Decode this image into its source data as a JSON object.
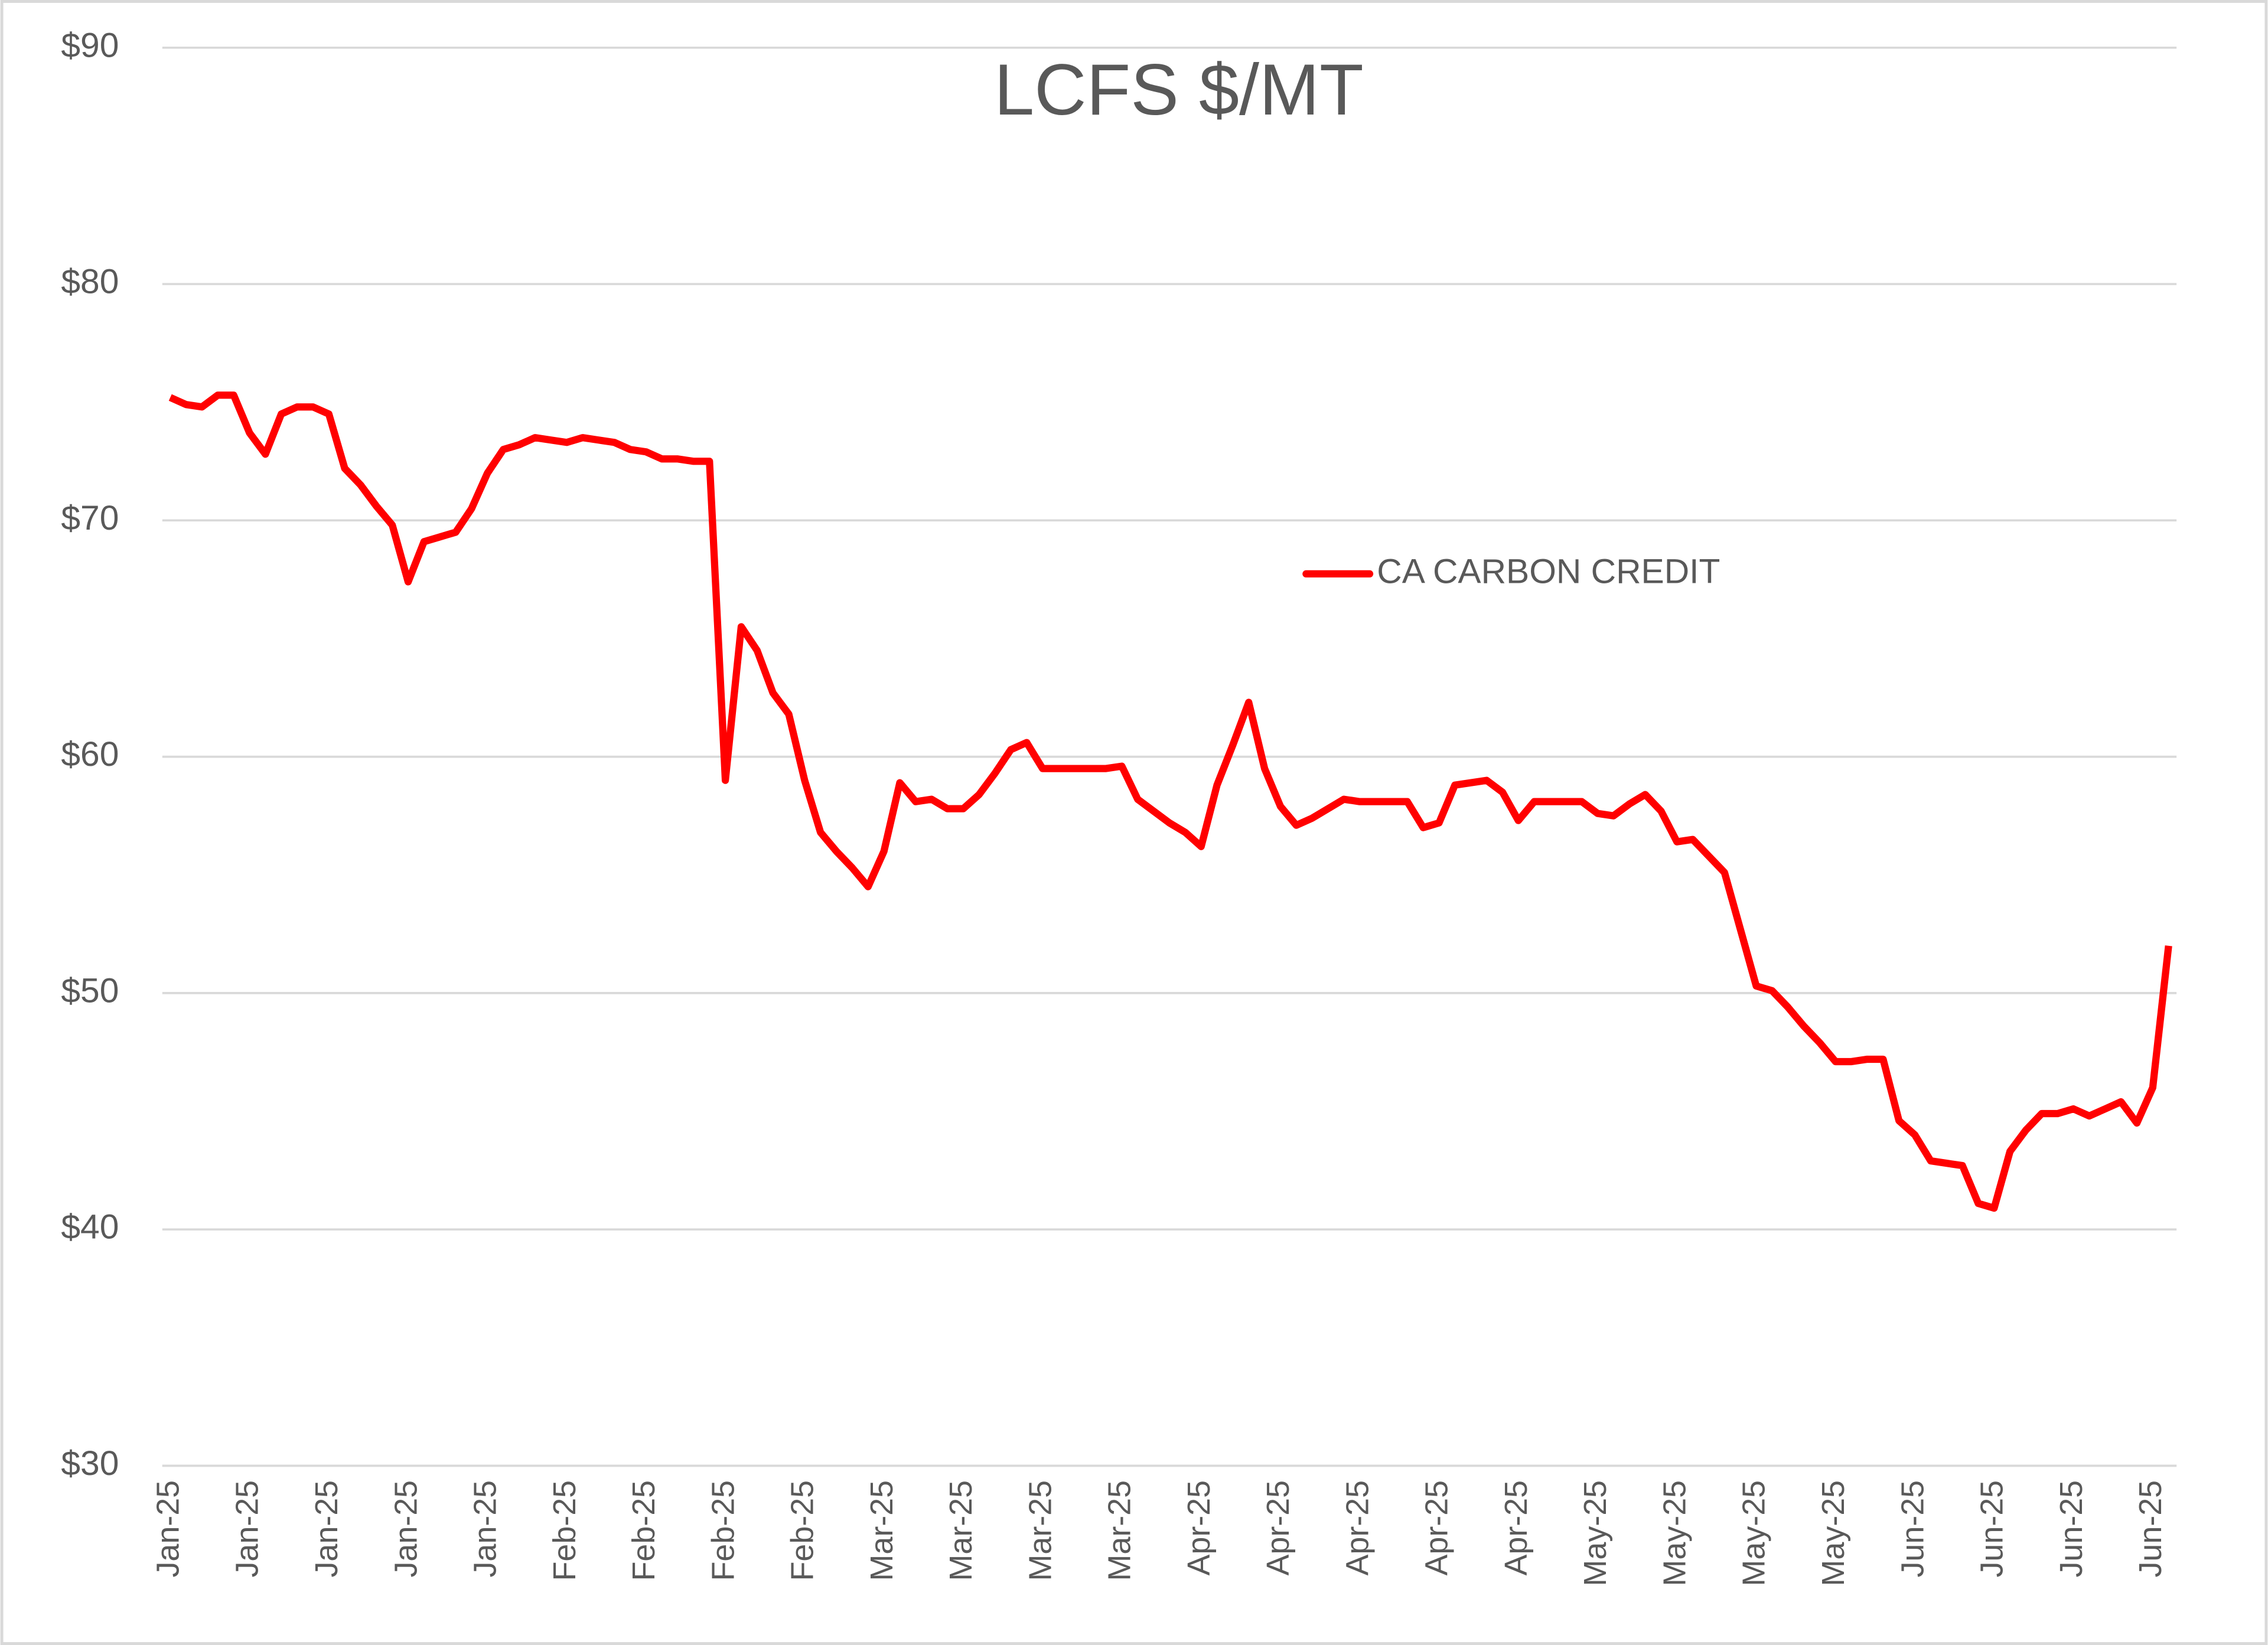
{
  "chart_data": {
    "type": "line",
    "title": "LCFS $/MT",
    "categories": [
      "Jan-25",
      null,
      null,
      null,
      null,
      "Jan-25",
      null,
      null,
      null,
      null,
      "Jan-25",
      null,
      null,
      null,
      null,
      "Jan-25",
      null,
      null,
      null,
      null,
      "Jan-25",
      null,
      null,
      null,
      null,
      "Feb-25",
      null,
      null,
      null,
      null,
      "Feb-25",
      null,
      null,
      null,
      null,
      "Feb-25",
      null,
      null,
      null,
      null,
      "Feb-25",
      null,
      null,
      null,
      null,
      "Mar-25",
      null,
      null,
      null,
      null,
      "Mar-25",
      null,
      null,
      null,
      null,
      "Mar-25",
      null,
      null,
      null,
      null,
      "Mar-25",
      null,
      null,
      null,
      null,
      "Apr-25",
      null,
      null,
      null,
      null,
      "Apr-25",
      null,
      null,
      null,
      null,
      "Apr-25",
      null,
      null,
      null,
      null,
      "Apr-25",
      null,
      null,
      null,
      null,
      "Apr-25",
      null,
      null,
      null,
      null,
      "May-25",
      null,
      null,
      null,
      null,
      "May-25",
      null,
      null,
      null,
      null,
      "May-25",
      null,
      null,
      null,
      null,
      "May-25",
      null,
      null,
      null,
      null,
      "Jun-25",
      null,
      null,
      null,
      null,
      "Jun-25",
      null,
      null,
      null,
      null,
      "Jun-25",
      null,
      null,
      null,
      null,
      "Jun-25",
      null
    ],
    "series": [
      {
        "name": "CA CARBON CREDIT",
        "color": "#ff0000",
        "values": [
          75.2,
          74.9,
          74.8,
          75.3,
          75.3,
          73.7,
          72.8,
          74.5,
          74.8,
          74.8,
          74.5,
          72.2,
          71.5,
          70.6,
          69.8,
          67.4,
          69.1,
          69.3,
          69.5,
          70.5,
          72.0,
          73.0,
          73.2,
          73.5,
          73.4,
          73.3,
          73.5,
          73.4,
          73.3,
          73.0,
          72.9,
          72.6,
          72.6,
          72.5,
          72.5,
          59.0,
          65.5,
          64.5,
          62.7,
          61.8,
          59.0,
          56.8,
          56.0,
          55.3,
          54.5,
          56.0,
          58.9,
          58.1,
          58.2,
          57.8,
          57.8,
          58.4,
          59.3,
          60.3,
          60.6,
          59.5,
          59.5,
          59.5,
          59.5,
          59.5,
          59.6,
          58.2,
          57.7,
          57.2,
          56.8,
          56.2,
          58.8,
          60.5,
          62.3,
          59.5,
          57.9,
          57.1,
          57.4,
          57.8,
          58.2,
          58.1,
          58.1,
          58.1,
          58.1,
          57.0,
          57.2,
          58.8,
          58.9,
          59.0,
          58.5,
          57.3,
          58.1,
          58.1,
          58.1,
          58.1,
          57.6,
          57.5,
          58.0,
          58.4,
          57.7,
          56.4,
          56.5,
          55.8,
          55.1,
          52.7,
          50.3,
          50.1,
          49.4,
          48.6,
          47.9,
          47.1,
          47.1,
          47.2,
          47.2,
          44.6,
          44.0,
          42.9,
          42.8,
          42.7,
          41.1,
          40.9,
          43.3,
          44.2,
          44.9,
          44.9,
          45.1,
          44.8,
          45.1,
          45.4,
          44.5,
          46.0,
          52.0
        ]
      }
    ],
    "ylim": [
      30,
      90
    ],
    "yticks": [
      {
        "value": 30,
        "label": "$30"
      },
      {
        "value": 40,
        "label": "$40"
      },
      {
        "value": 50,
        "label": "$50"
      },
      {
        "value": 60,
        "label": "$60"
      },
      {
        "value": 70,
        "label": "$70"
      },
      {
        "value": 80,
        "label": "$80"
      },
      {
        "value": 90,
        "label": "$90"
      }
    ],
    "grid": true,
    "legend": "right"
  }
}
